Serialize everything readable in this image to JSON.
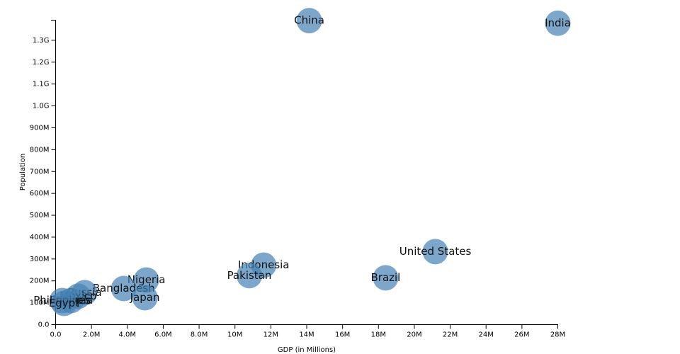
{
  "chart_data": {
    "type": "scatter",
    "x_label": "GDP (in Millions)",
    "y_label": "Population",
    "color": "#4682b4",
    "xlim": [
      0,
      28000000
    ],
    "ylim": [
      0,
      1400000000
    ],
    "xticks": [
      {
        "value": 0,
        "label": "0.0"
      },
      {
        "value": 2000000,
        "label": "2.0M"
      },
      {
        "value": 4000000,
        "label": "4.0M"
      },
      {
        "value": 6000000,
        "label": "6.0M"
      },
      {
        "value": 8000000,
        "label": "8.0M"
      },
      {
        "value": 10000000,
        "label": "10M"
      },
      {
        "value": 12000000,
        "label": "12M"
      },
      {
        "value": 14000000,
        "label": "14M"
      },
      {
        "value": 16000000,
        "label": "16M"
      },
      {
        "value": 18000000,
        "label": "18M"
      },
      {
        "value": 20000000,
        "label": "20M"
      },
      {
        "value": 22000000,
        "label": "22M"
      },
      {
        "value": 24000000,
        "label": "24M"
      },
      {
        "value": 26000000,
        "label": "26M"
      },
      {
        "value": 28000000,
        "label": "28M"
      }
    ],
    "yticks": [
      {
        "value": 0,
        "label": "0.0"
      },
      {
        "value": 100000000,
        "label": "100M"
      },
      {
        "value": 200000000,
        "label": "200M"
      },
      {
        "value": 300000000,
        "label": "300M"
      },
      {
        "value": 400000000,
        "label": "400M"
      },
      {
        "value": 500000000,
        "label": "500M"
      },
      {
        "value": 600000000,
        "label": "600M"
      },
      {
        "value": 700000000,
        "label": "700M"
      },
      {
        "value": 800000000,
        "label": "800M"
      },
      {
        "value": 900000000,
        "label": "900M"
      },
      {
        "value": 1000000000,
        "label": "1.0G"
      },
      {
        "value": 1100000000,
        "label": "1.1G"
      },
      {
        "value": 1200000000,
        "label": "1.2G"
      },
      {
        "value": 1300000000,
        "label": "1.3G"
      }
    ],
    "labels": [
      "China",
      "India",
      "United States",
      "Brazil",
      "Indonesia",
      "Pakistan",
      "Nigeria",
      "Bangladesh",
      "Japan",
      "Russia",
      "Mexico",
      "Ethiopia",
      "Philippines",
      "Egypt"
    ],
    "x": [
      14140000,
      28000000,
      21170000,
      18400000,
      11600000,
      10800000,
      5060000,
      3800000,
      4980000,
      1620000,
      1260000,
      870000,
      360000,
      470000
    ],
    "values": [
      1390000000,
      1378000000,
      334000000,
      214000000,
      272000000,
      224000000,
      204000000,
      165000000,
      123000000,
      146000000,
      130000000,
      110000000,
      110000000,
      97000000
    ]
  }
}
